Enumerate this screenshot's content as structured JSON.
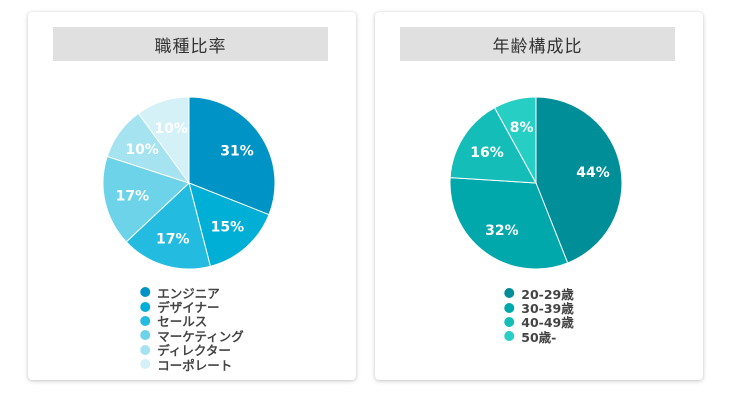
{
  "colors": {
    "job": [
      "#0094c6",
      "#00afd6",
      "#23bce0",
      "#6dd3e8",
      "#a5e3f0",
      "#d4f1f7"
    ],
    "age": [
      "#008f98",
      "#00a8ac",
      "#14bdb8",
      "#27cec3"
    ]
  },
  "chart_data": [
    {
      "type": "pie",
      "title": "職種比率",
      "categories": [
        "エンジニア",
        "デザイナー",
        "セールス",
        "マーケティング",
        "ディレクター",
        "コーポレート"
      ],
      "values": [
        31,
        15,
        17,
        17,
        10,
        10
      ],
      "labels": [
        "31%",
        "15%",
        "17%",
        "17%",
        "10%",
        "10%"
      ],
      "legend": "bottom"
    },
    {
      "type": "pie",
      "title": "年齢構成比",
      "categories": [
        "20-29歳",
        "30-39歳",
        "40-49歳",
        "50歳-"
      ],
      "values": [
        44,
        32,
        16,
        8
      ],
      "labels": [
        "44%",
        "32%",
        "16%",
        "8%"
      ],
      "legend": "bottom"
    }
  ]
}
